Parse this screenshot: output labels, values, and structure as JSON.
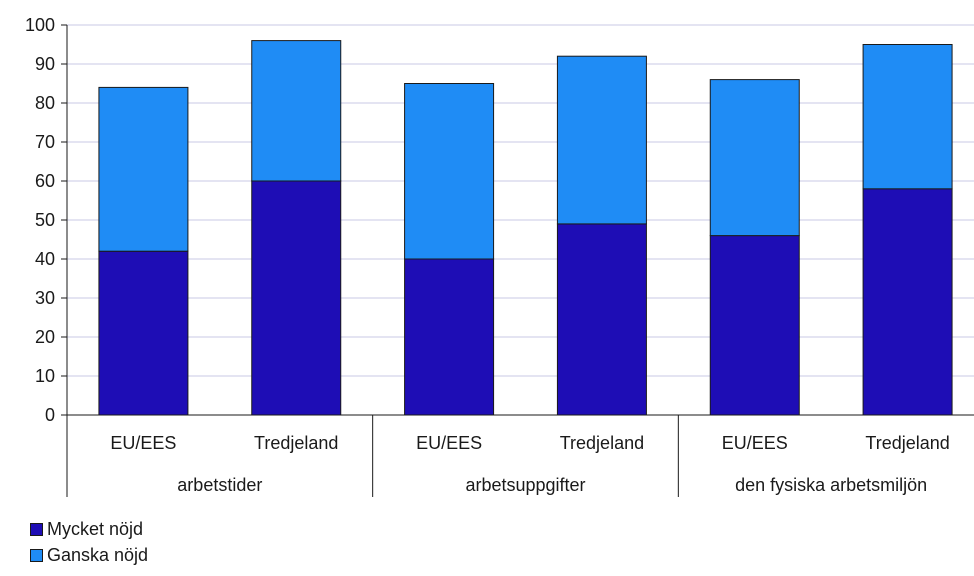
{
  "chart_data": {
    "type": "bar",
    "stacked": true,
    "groups": [
      {
        "label": "arbetstider",
        "categories": [
          "EU/EES",
          "Tredjeland"
        ]
      },
      {
        "label": "arbetsuppgifter",
        "categories": [
          "EU/EES",
          "Tredjeland"
        ]
      },
      {
        "label": "den fysiska arbetsmiljön",
        "categories": [
          "EU/EES",
          "Tredjeland"
        ]
      }
    ],
    "categories": [
      "EU/EES",
      "Tredjeland",
      "EU/EES",
      "Tredjeland",
      "EU/EES",
      "Tredjeland"
    ],
    "series": [
      {
        "name": "Mycket nöjd",
        "color": "#1e0db5",
        "values": [
          42,
          60,
          40,
          49,
          46,
          58
        ]
      },
      {
        "name": "Ganska nöjd",
        "color": "#1f8cf5",
        "values": [
          42,
          36,
          45,
          43,
          40,
          37
        ]
      }
    ],
    "ylim": [
      0,
      100
    ],
    "yticks": [
      "0",
      "10",
      "20",
      "30",
      "40",
      "50",
      "60",
      "70",
      "80",
      "90",
      "100"
    ],
    "grid": true,
    "legend_position": "bottom-left"
  }
}
